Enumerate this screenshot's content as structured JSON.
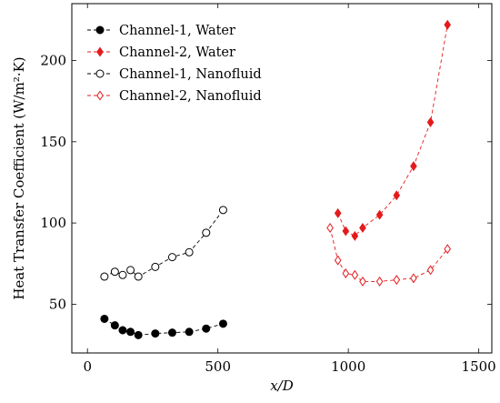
{
  "chart_data": {
    "type": "line",
    "xlabel": "x/D",
    "ylabel": "Heat Transfer Coefficient (W/m²·K)",
    "xlim": [
      -60,
      1550
    ],
    "ylim": [
      20,
      235
    ],
    "xticks": [
      0,
      500,
      1000,
      1500
    ],
    "yticks": [
      50,
      100,
      150,
      200
    ],
    "grid": false,
    "legend_position": "top-left",
    "series": [
      {
        "name": "Channel-1, Water",
        "color": "#000000",
        "marker": "circle-filled",
        "x": [
          65,
          105,
          135,
          165,
          195,
          260,
          325,
          390,
          455,
          520
        ],
        "y": [
          41,
          37,
          34,
          33,
          31,
          32,
          32.5,
          33,
          35,
          38
        ]
      },
      {
        "name": "Channel-2, Water",
        "color": "#e41a1c",
        "marker": "diamond-filled",
        "x": [
          960,
          990,
          1025,
          1055,
          1120,
          1185,
          1250,
          1315,
          1380
        ],
        "y": [
          106,
          95,
          92,
          97,
          105,
          117,
          135,
          162,
          222
        ]
      },
      {
        "name": "Channel-1, Nanofluid",
        "color": "#000000",
        "marker": "circle-open",
        "x": [
          65,
          105,
          135,
          165,
          195,
          260,
          325,
          390,
          455,
          520
        ],
        "y": [
          67,
          70,
          68,
          71,
          67,
          73,
          79,
          82,
          94,
          108
        ]
      },
      {
        "name": "Channel-2, Nanofluid",
        "color": "#e41a1c",
        "marker": "diamond-open",
        "x": [
          930,
          960,
          990,
          1025,
          1055,
          1120,
          1185,
          1250,
          1315,
          1380
        ],
        "y": [
          97,
          77,
          69,
          68,
          64,
          64,
          65,
          66,
          71,
          84
        ]
      }
    ]
  }
}
